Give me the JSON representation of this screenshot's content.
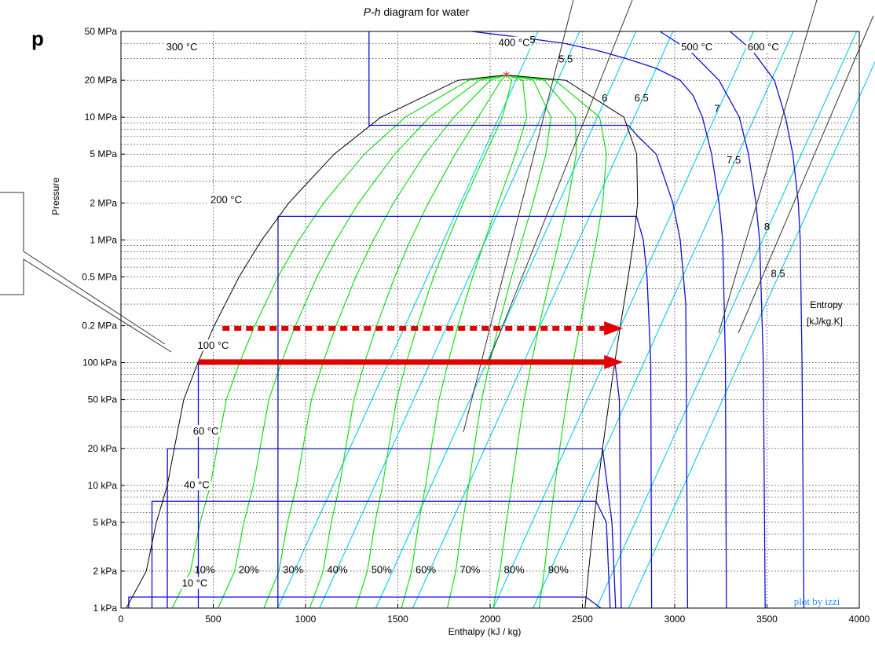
{
  "chart_data": {
    "type": "line",
    "title": "P-h diagram for water",
    "title_italic_part": "P-h",
    "title_rest": " diagram for water",
    "xlabel": "Enthalpy (kJ / kg)",
    "ylabel": "Pressure",
    "xlim": [
      0,
      4000
    ],
    "ylim_kPa": [
      1,
      50000
    ],
    "y_scale": "log",
    "grid": true,
    "x_ticks": [
      0,
      500,
      1000,
      1500,
      2000,
      2500,
      3000,
      3500,
      4000
    ],
    "y_ticks": [
      {
        "value_kPa": 50000,
        "label": "50 MPa"
      },
      {
        "value_kPa": 20000,
        "label": "20 MPa"
      },
      {
        "value_kPa": 10000,
        "label": "10 MPa"
      },
      {
        "value_kPa": 5000,
        "label": "5 MPa"
      },
      {
        "value_kPa": 2000,
        "label": "2 MPa"
      },
      {
        "value_kPa": 1000,
        "label": "1 MPa"
      },
      {
        "value_kPa": 500,
        "label": "0.5 MPa"
      },
      {
        "value_kPa": 200,
        "label": "0.2 MPa"
      },
      {
        "value_kPa": 100,
        "label": "100 kPa"
      },
      {
        "value_kPa": 50,
        "label": "50 kPa"
      },
      {
        "value_kPa": 20,
        "label": "20 kPa"
      },
      {
        "value_kPa": 10,
        "label": "10 kPa"
      },
      {
        "value_kPa": 5,
        "label": "5 kPa"
      },
      {
        "value_kPa": 2,
        "label": "2 kPa"
      },
      {
        "value_kPa": 1,
        "label": "1 kPa"
      }
    ],
    "saturation_dome": {
      "critical_point": [
        2087,
        22064
      ],
      "liquid": [
        [
          29,
          1
        ],
        [
          137,
          2
        ],
        [
          192,
          5
        ],
        [
          251,
          10
        ],
        [
          289,
          20
        ],
        [
          340,
          50
        ],
        [
          417,
          100
        ],
        [
          505,
          200
        ],
        [
          640,
          500
        ],
        [
          763,
          1000
        ],
        [
          909,
          2000
        ],
        [
          1155,
          5000
        ],
        [
          1408,
          10000
        ],
        [
          1826,
          20000
        ],
        [
          2087,
          22064
        ]
      ],
      "vapor": [
        [
          2087,
          22064
        ],
        [
          2410,
          20000
        ],
        [
          2725,
          10000
        ],
        [
          2794,
          5000
        ],
        [
          2799,
          2000
        ],
        [
          2778,
          1000
        ],
        [
          2748,
          500
        ],
        [
          2706,
          200
        ],
        [
          2675,
          100
        ],
        [
          2646,
          50
        ],
        [
          2609,
          20
        ],
        [
          2584,
          10
        ],
        [
          2561,
          5
        ],
        [
          2533,
          2
        ],
        [
          2514,
          1
        ]
      ]
    },
    "quality_lines": {
      "labels": [
        "10%",
        "20%",
        "30%",
        "40%",
        "50%",
        "60%",
        "70%",
        "80%",
        "90%"
      ],
      "values": [
        0.1,
        0.2,
        0.3,
        0.4,
        0.5,
        0.6,
        0.7,
        0.8,
        0.9
      ],
      "color": "#00dd00"
    },
    "isotherms": [
      {
        "label": "10 °C",
        "points": [
          [
            42,
            1
          ],
          [
            42,
            1.23
          ],
          [
            2519,
            1.23
          ],
          [
            2600,
            1
          ]
        ]
      },
      {
        "label": "40 °C",
        "points": [
          [
            168,
            1
          ],
          [
            168,
            7.4
          ],
          [
            2574,
            7.4
          ],
          [
            2630,
            5
          ],
          [
            2650,
            1
          ]
        ]
      },
      {
        "label": "60 °C",
        "points": [
          [
            251,
            1
          ],
          [
            252,
            19.9
          ],
          [
            2609,
            19.9
          ],
          [
            2660,
            5
          ],
          [
            2680,
            1
          ]
        ]
      },
      {
        "label": "100 °C",
        "points": [
          [
            419,
            1
          ],
          [
            419,
            101
          ],
          [
            2676,
            101
          ],
          [
            2700,
            50
          ],
          [
            2710,
            1
          ]
        ]
      },
      {
        "label": "200 °C",
        "points": [
          [
            850,
            1
          ],
          [
            851,
            1555
          ],
          [
            2793,
            1555
          ],
          [
            2830,
            1000
          ],
          [
            2850,
            500
          ],
          [
            2870,
            100
          ],
          [
            2875,
            1
          ]
        ]
      },
      {
        "label": "300 °C",
        "points": [
          [
            1344,
            50000
          ],
          [
            1344,
            8588
          ],
          [
            2749,
            8588
          ],
          [
            2800,
            7000
          ],
          [
            2900,
            5000
          ],
          [
            2990,
            2000
          ],
          [
            3030,
            1000
          ],
          [
            3060,
            300
          ],
          [
            3070,
            1
          ]
        ]
      },
      {
        "label": "400 °C",
        "points": [
          [
            1900,
            50000
          ],
          [
            2150,
            45000
          ],
          [
            2400,
            40000
          ],
          [
            2580,
            35000
          ],
          [
            2740,
            30000
          ],
          [
            2900,
            25000
          ],
          [
            3030,
            20000
          ],
          [
            3100,
            15000
          ],
          [
            3150,
            10000
          ],
          [
            3200,
            5000
          ],
          [
            3240,
            2000
          ],
          [
            3260,
            1000
          ],
          [
            3275,
            100
          ],
          [
            3280,
            1
          ]
        ]
      },
      {
        "label": "500 °C",
        "points": [
          [
            2920,
            50000
          ],
          [
            3080,
            35000
          ],
          [
            3240,
            20000
          ],
          [
            3350,
            10000
          ],
          [
            3400,
            5000
          ],
          [
            3440,
            2000
          ],
          [
            3460,
            1000
          ],
          [
            3480,
            100
          ],
          [
            3490,
            1
          ]
        ]
      },
      {
        "label": "600 °C",
        "points": [
          [
            3300,
            50000
          ],
          [
            3420,
            35000
          ],
          [
            3540,
            20000
          ],
          [
            3600,
            10000
          ],
          [
            3640,
            5000
          ],
          [
            3670,
            2000
          ],
          [
            3680,
            1000
          ],
          [
            3690,
            100
          ],
          [
            3700,
            1
          ]
        ]
      }
    ],
    "isotherm_color": "#1010d0",
    "isentropes": {
      "labels": [
        "5",
        "5.5",
        "6",
        "6.5",
        "7",
        "7.5",
        "8",
        "8.5"
      ],
      "label_positions": [
        [
          2230,
          40000
        ],
        [
          2410,
          28000
        ],
        [
          2620,
          13500
        ],
        [
          2820,
          13500
        ],
        [
          3230,
          11000
        ],
        [
          3320,
          4200
        ],
        [
          3500,
          1200
        ],
        [
          3560,
          500
        ]
      ],
      "color": "#00ccee"
    },
    "annotations": {
      "entropy_label": "Entropy",
      "entropy_unit": "[kJ/kg.K]",
      "credit": "plot by izzi",
      "critical_marker": "*"
    },
    "arrows": [
      {
        "style": "dashed",
        "from": [
          550,
          190
        ],
        "to": [
          2720,
          190
        ],
        "color": "#e00000"
      },
      {
        "style": "solid",
        "from": [
          420,
          101
        ],
        "to": [
          2720,
          101
        ],
        "color": "#e00000"
      }
    ]
  },
  "overlay": {
    "letter": "p"
  }
}
